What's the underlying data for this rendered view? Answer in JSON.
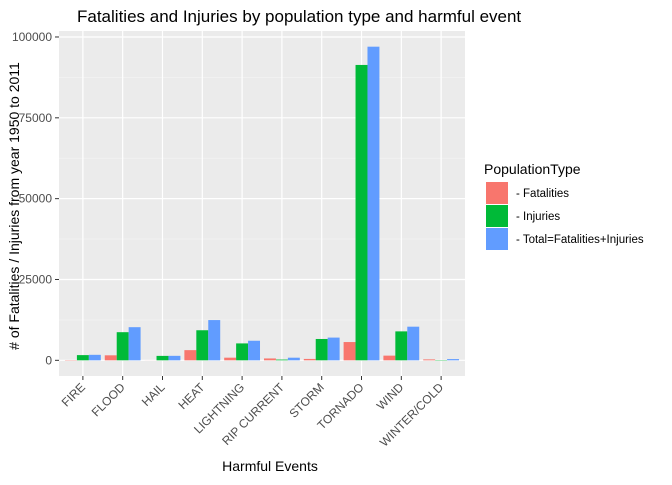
{
  "chart_data": {
    "type": "bar",
    "title": "Fatalities and Injuries by population type and harmful event",
    "xlabel": "Harmful Events",
    "ylabel": "# of Fatalities / Injuries from year 1950 to 2011",
    "categories": [
      "FIRE",
      "FLOOD",
      "HAIL",
      "HEAT",
      "LIGHTNING",
      "RIP CURRENT",
      "STORM",
      "TORNADO",
      "WIND",
      "WINTER/COLD"
    ],
    "series": [
      {
        "name": "- Fatalities",
        "color": "#F8766D",
        "values": [
          90,
          1550,
          15,
          3150,
          820,
          580,
          430,
          5650,
          1450,
          280
        ]
      },
      {
        "name": "- Injuries",
        "color": "#00BA38",
        "values": [
          1610,
          8700,
          1370,
          9300,
          5230,
          230,
          6600,
          91350,
          8950,
          100
        ]
      },
      {
        "name": "- Total=Fatalities+Injuries",
        "color": "#619CFF",
        "values": [
          1700,
          10250,
          1385,
          12450,
          6050,
          810,
          7030,
          97000,
          10400,
          380
        ]
      }
    ],
    "yticks": [
      0,
      25000,
      50000,
      75000,
      100000
    ],
    "ytick_labels": [
      "0",
      "25000",
      "50000",
      "75000",
      "100000"
    ],
    "ylim": [
      -4850,
      101850
    ],
    "grid": true,
    "legend": {
      "title": "PopulationType",
      "position": "right"
    }
  }
}
